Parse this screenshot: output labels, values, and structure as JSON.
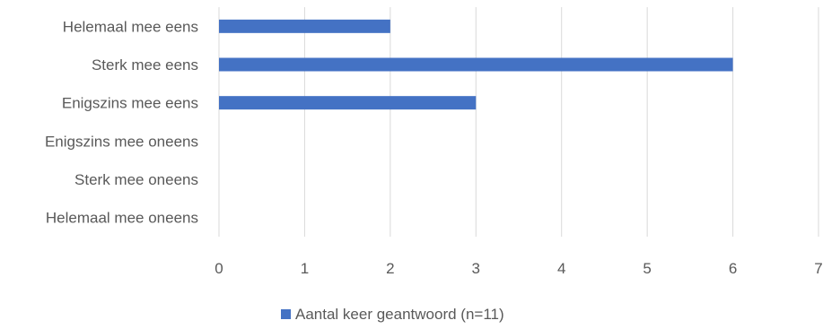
{
  "chart_data": {
    "type": "bar",
    "orientation": "horizontal",
    "categories": [
      "Helemaal mee eens",
      "Sterk mee eens",
      "Enigszins mee eens",
      "Enigszins mee oneens",
      "Sterk mee oneens",
      "Helemaal mee oneens"
    ],
    "series": [
      {
        "name": "Aantal keer geantwoord (n=11)",
        "values": [
          2,
          6,
          3,
          0,
          0,
          0
        ],
        "color": "#4472C4"
      }
    ],
    "xlim": [
      0,
      7
    ],
    "xticks": [
      "0",
      "1",
      "2",
      "3",
      "4",
      "5",
      "6",
      "7"
    ],
    "grid": true,
    "legend_position": "bottom",
    "gridline_color": "#D9D9D9",
    "text_color": "#595959"
  }
}
